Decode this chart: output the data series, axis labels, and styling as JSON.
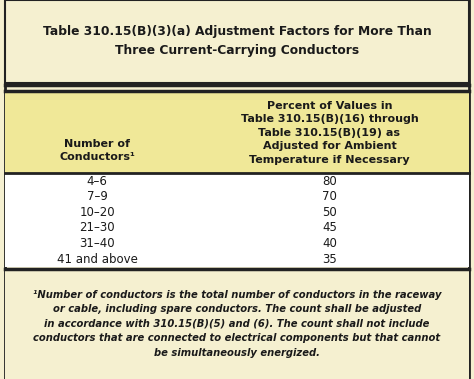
{
  "title_line1": "Table 310.15(B)(3)(a) Adjustment Factors for More Than",
  "title_line2": "Three Current-Carrying Conductors",
  "col1_header": "Number of\nConductors¹",
  "col2_header": "Percent of Values in\nTable 310.15(B)(16) through\nTable 310.15(B)(19) as\nAdjusted for Ambient\nTemperature if Necessary",
  "rows": [
    [
      "4–6",
      "80"
    ],
    [
      "7–9",
      "70"
    ],
    [
      "10–20",
      "50"
    ],
    [
      "21–30",
      "45"
    ],
    [
      "31–40",
      "40"
    ],
    [
      "41 and above",
      "35"
    ]
  ],
  "footnote": "¹Number of conductors is the total number of conductors in the raceway\nor cable, including spare conductors. The count shall be adjusted\nin accordance with 310.15(B)(5) and (6). The count shall not include\nconductors that are connected to electrical components but that cannot\nbe simultaneously energized.",
  "bg_color": "#f5f0d0",
  "title_bg": "#f5f0d0",
  "header_bg": "#f0e898",
  "table_bg": "#ffffff",
  "footnote_bg": "#f5f0d0",
  "border_color": "#222222",
  "text_color": "#1a1a1a",
  "title_fontsize": 8.8,
  "header_fontsize": 8.0,
  "data_fontsize": 8.5,
  "footnote_fontsize": 7.2,
  "col_split": 0.4
}
